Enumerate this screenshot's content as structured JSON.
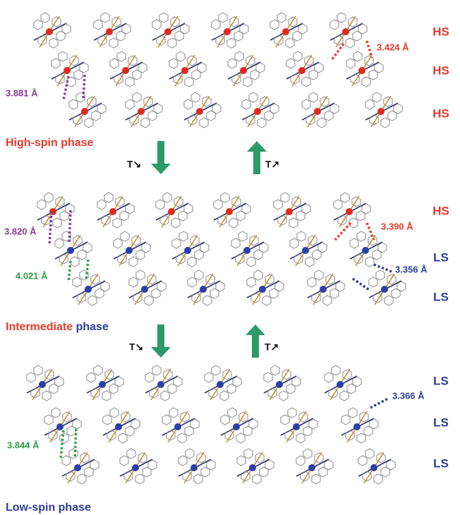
{
  "panels": [
    {
      "title": "High-spin phase",
      "spin_labels": [
        "HS",
        "HS",
        "HS"
      ],
      "distances": [
        "3.424 Å",
        "3.881 Å"
      ]
    },
    {
      "title": [
        "Intermediate",
        "phase"
      ],
      "spin_labels": [
        "HS",
        "LS",
        "LS"
      ],
      "distances": [
        "3.820 Å",
        "4.021 Å",
        "3.390 Å",
        "3.356 Å"
      ]
    },
    {
      "title": "Low-spin phase",
      "spin_labels": [
        "LS",
        "LS",
        "LS"
      ],
      "distances": [
        "3.366 Å",
        "3.844 Å"
      ]
    }
  ],
  "transitions": [
    {
      "down": "T↘",
      "up": "T↗"
    },
    {
      "down": "T↘",
      "up": "T↗"
    }
  ]
}
